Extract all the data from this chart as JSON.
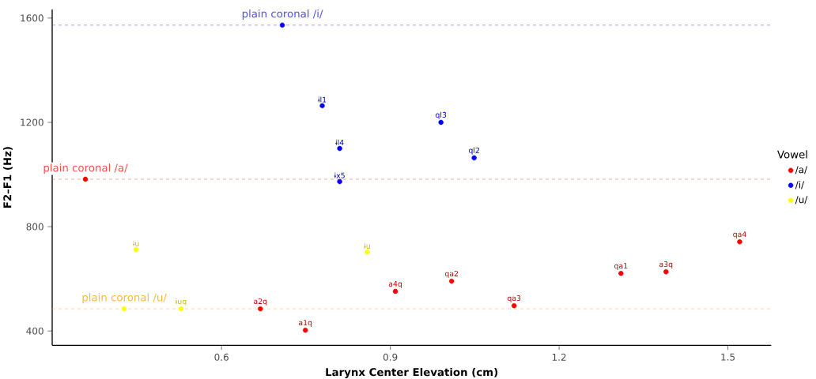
{
  "chart_data": {
    "type": "scatter",
    "xlabel": "Larynx Center Elevation (cm)",
    "ylabel": "F2–F1 (Hz)",
    "legend_title": "Vowel",
    "xlim": [
      0.299,
      1.577
    ],
    "ylim": [
      345,
      1633
    ],
    "xticks": [
      0.6,
      0.9,
      1.2,
      1.5
    ],
    "yticks": [
      400,
      800,
      1200,
      1600
    ],
    "grid": false,
    "legend": "right",
    "marker": "circle",
    "series": [
      {
        "name": "/a/",
        "color": "#ff0000",
        "x": [
          0.358,
          0.749,
          0.669,
          0.909,
          1.009,
          1.12,
          1.31,
          1.39,
          1.521
        ],
        "values": [
          982,
          403,
          485,
          552,
          591,
          497,
          621,
          627,
          742
        ],
        "value_labels": [
          null,
          "a1q",
          "a2q",
          "a4q",
          "qa2",
          "qa3",
          "qa1",
          "a3q",
          "qa4"
        ]
      },
      {
        "name": "/i/",
        "color": "#0000ff",
        "x": [
          0.708,
          0.779,
          0.81,
          0.81,
          0.99,
          1.049
        ],
        "values": [
          1573,
          1264,
          1100,
          973,
          1200,
          1064
        ],
        "value_labels": [
          null,
          "ɨl1",
          "ɨl4",
          "ɨx5",
          "ql3",
          "ql2"
        ]
      },
      {
        "name": "/u/",
        "color": "#ffff00",
        "x": [
          0.427,
          0.448,
          0.859,
          0.528
        ],
        "values": [
          485,
          712,
          703,
          485
        ],
        "value_labels": [
          null,
          "ɨu",
          "ɨu",
          "ɨuq"
        ]
      }
    ],
    "ref_lines": [
      {
        "axis": "y",
        "value": 1573,
        "color": "#4d4dff",
        "line_style": "dashed"
      },
      {
        "axis": "y",
        "value": 982,
        "color": "#ff4d4d",
        "line_style": "dashed"
      },
      {
        "axis": "y",
        "value": 485,
        "color": "#ffb833",
        "line_style": "dashed"
      }
    ],
    "annotations": [
      {
        "text": "plain coronal /i/",
        "x": 0.708,
        "y": 1573
      },
      {
        "text": "plain coronal /a/",
        "x": 0.358,
        "y": 982
      },
      {
        "text": "plain coronal /u/",
        "x": 0.427,
        "y": 485
      }
    ]
  }
}
